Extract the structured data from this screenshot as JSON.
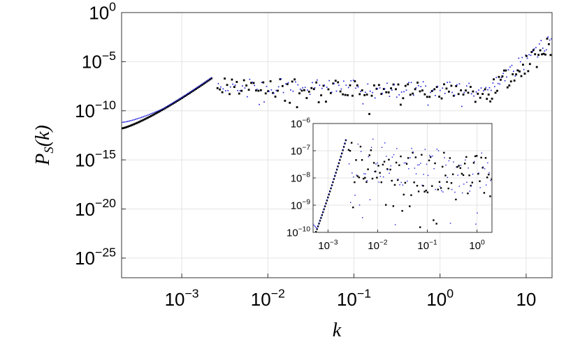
{
  "chart_data": [
    {
      "type": "scatter",
      "title": "",
      "xlabel": "k",
      "ylabel": "P_S(k)",
      "ylabel_parts": {
        "main": "P",
        "sub": "S",
        "arg": "(k)"
      },
      "x_scale": "log",
      "y_scale": "log",
      "xlim": [
        0.0002,
        20
      ],
      "ylim": [
        1e-27,
        1
      ],
      "grid": true,
      "x_ticks": [
        {
          "value": 0.001,
          "base": "10",
          "exp": "−3"
        },
        {
          "value": 0.01,
          "base": "10",
          "exp": "−2"
        },
        {
          "value": 0.1,
          "base": "10",
          "exp": "−1"
        },
        {
          "value": 1,
          "base": "10",
          "exp": "0"
        },
        {
          "value": 10,
          "base": "10",
          "exp": ""
        }
      ],
      "y_ticks": [
        {
          "value": 1,
          "base": "10",
          "exp": "0"
        },
        {
          "value": 1e-05,
          "base": "10",
          "exp": "−5"
        },
        {
          "value": 1e-10,
          "base": "10",
          "exp": "−10"
        },
        {
          "value": 1e-15,
          "base": "10",
          "exp": "−15"
        },
        {
          "value": 1e-20,
          "base": "10",
          "exp": "−20"
        },
        {
          "value": 1e-25,
          "base": "10",
          "exp": "−25"
        }
      ],
      "series": [
        {
          "color": "#000000",
          "marker": "square-dot"
        },
        {
          "color": "#2222dd",
          "marker": "dot"
        }
      ]
    },
    {
      "type": "scatter",
      "title": "",
      "inset": true,
      "x_scale": "log",
      "y_scale": "log",
      "xlim": [
        0.0005,
        2
      ],
      "ylim": [
        1e-10,
        1e-06
      ],
      "grid": true,
      "x_ticks": [
        {
          "value": 0.001,
          "base": "10",
          "exp": "−3"
        },
        {
          "value": 0.01,
          "base": "10",
          "exp": "−2"
        },
        {
          "value": 0.1,
          "base": "10",
          "exp": "−1"
        },
        {
          "value": 1,
          "base": "10",
          "exp": "0"
        }
      ],
      "y_ticks": [
        {
          "value": 1e-06,
          "base": "10",
          "exp": "−6"
        },
        {
          "value": 1e-07,
          "base": "10",
          "exp": "−7"
        },
        {
          "value": 1e-08,
          "base": "10",
          "exp": "−8"
        },
        {
          "value": 1e-09,
          "base": "10",
          "exp": "−9"
        },
        {
          "value": 1e-10,
          "base": "10",
          "exp": "−10"
        }
      ],
      "series": [
        {
          "color": "#000000",
          "marker": "square-dot"
        },
        {
          "color": "#2222dd",
          "marker": "dot"
        }
      ]
    }
  ]
}
